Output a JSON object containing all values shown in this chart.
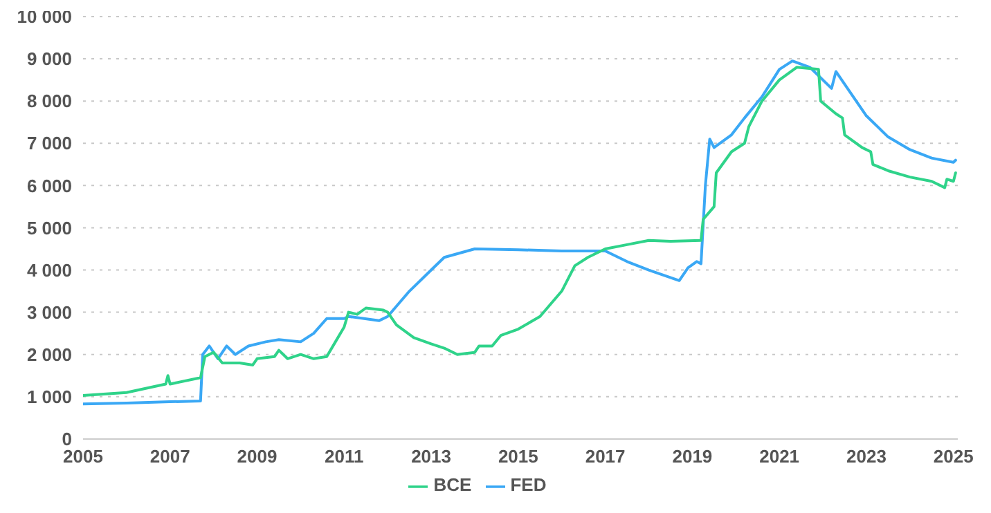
{
  "chart_data": {
    "type": "line",
    "xlim": [
      2005,
      2025.1
    ],
    "xticks": [
      2005,
      2007,
      2009,
      2011,
      2013,
      2015,
      2017,
      2019,
      2021,
      2023,
      2025
    ],
    "ylim": [
      0,
      10000
    ],
    "yticks": [
      {
        "value": 0,
        "label": "0"
      },
      {
        "value": 1000,
        "label": "1 000"
      },
      {
        "value": 2000,
        "label": "2 000"
      },
      {
        "value": 3000,
        "label": "3 000"
      },
      {
        "value": 4000,
        "label": "4 000"
      },
      {
        "value": 5000,
        "label": "5 000"
      },
      {
        "value": 6000,
        "label": "6 000"
      },
      {
        "value": 7000,
        "label": "7 000"
      },
      {
        "value": 8000,
        "label": "8 000"
      },
      {
        "value": 9000,
        "label": "9 000"
      },
      {
        "value": 10000,
        "label": "10 000"
      }
    ],
    "grid": "y",
    "legend": "bottom",
    "marker": "none",
    "line_style": "solid",
    "series": [
      {
        "name": "FED",
        "color": "#3aa8f5",
        "x": [
          2005,
          2006,
          2007,
          2007.7,
          2007.75,
          2007.9,
          2008.1,
          2008.3,
          2008.5,
          2008.8,
          2009.2,
          2009.5,
          2010.0,
          2010.3,
          2010.6,
          2011.0,
          2011.1,
          2011.8,
          2012.0,
          2012.5,
          2013.0,
          2013.3,
          2014.0,
          2015.0,
          2016.0,
          2017.0,
          2017.5,
          2018.0,
          2018.7,
          2018.9,
          2019.1,
          2019.2,
          2019.3,
          2019.4,
          2019.5,
          2019.9,
          2020.2,
          2020.6,
          2021.0,
          2021.3,
          2021.7,
          2022.0,
          2022.2,
          2022.3,
          2022.7,
          2023.0,
          2023.5,
          2024.0,
          2024.5,
          2025.0,
          2025.05
        ],
        "values": [
          830,
          850,
          880,
          900,
          2000,
          2200,
          1900,
          2200,
          2000,
          2200,
          2300,
          2350,
          2300,
          2500,
          2850,
          2850,
          2900,
          2800,
          2900,
          3500,
          4000,
          4300,
          4500,
          4480,
          4450,
          4450,
          4200,
          4000,
          3750,
          4050,
          4200,
          4150,
          6000,
          7100,
          6900,
          7200,
          7600,
          8100,
          8750,
          8950,
          8800,
          8500,
          8300,
          8700,
          8100,
          7650,
          7150,
          6850,
          6650,
          6550,
          6600
        ]
      },
      {
        "name": "BCE",
        "color": "#2fd38a",
        "x": [
          2005,
          2006,
          2006.9,
          2006.95,
          2007.0,
          2007.7,
          2007.8,
          2008.0,
          2008.2,
          2008.6,
          2008.9,
          2009.0,
          2009.4,
          2009.5,
          2009.7,
          2010.0,
          2010.3,
          2010.6,
          2010.8,
          2011.0,
          2011.1,
          2011.3,
          2011.5,
          2011.9,
          2012.0,
          2012.2,
          2012.6,
          2013.0,
          2013.3,
          2013.6,
          2014.0,
          2014.1,
          2014.4,
          2014.6,
          2015.0,
          2015.5,
          2016.0,
          2016.3,
          2016.6,
          2017.0,
          2017.5,
          2018.0,
          2018.5,
          2019.2,
          2019.25,
          2019.5,
          2019.55,
          2019.9,
          2020.2,
          2020.3,
          2020.6,
          2021.0,
          2021.4,
          2021.9,
          2021.95,
          2022.3,
          2022.45,
          2022.5,
          2022.9,
          2023.1,
          2023.15,
          2023.5,
          2024.0,
          2024.5,
          2024.8,
          2024.85,
          2025.0,
          2025.05
        ],
        "values": [
          1030,
          1100,
          1300,
          1500,
          1300,
          1450,
          1950,
          2050,
          1800,
          1800,
          1750,
          1900,
          1950,
          2100,
          1900,
          2000,
          1900,
          1950,
          2300,
          2650,
          3000,
          2950,
          3100,
          3050,
          3000,
          2700,
          2400,
          2250,
          2150,
          2000,
          2050,
          2200,
          2200,
          2450,
          2600,
          2900,
          3500,
          4100,
          4300,
          4500,
          4600,
          4700,
          4680,
          4700,
          5200,
          5500,
          6300,
          6800,
          7000,
          7400,
          8000,
          8500,
          8800,
          8750,
          8000,
          7700,
          7600,
          7200,
          6900,
          6800,
          6500,
          6350,
          6200,
          6100,
          5950,
          6150,
          6100,
          6300
        ]
      }
    ]
  }
}
